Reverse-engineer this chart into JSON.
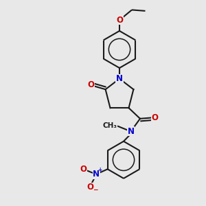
{
  "bg_color": "#e8e8e8",
  "bond_color": "#1a1a1a",
  "N_color": "#0000cc",
  "O_color": "#cc0000",
  "line_width": 1.5,
  "font_size": 8.5,
  "fig_size": [
    3.0,
    3.0
  ],
  "dpi": 100,
  "xlim": [
    0,
    10
  ],
  "ylim": [
    0,
    10
  ]
}
